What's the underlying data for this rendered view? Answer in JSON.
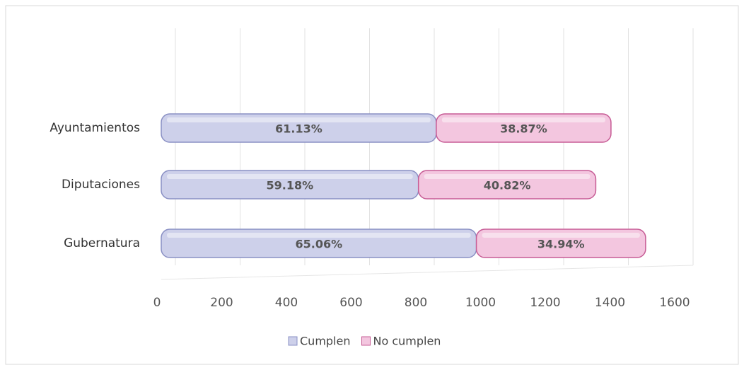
{
  "chart_data": {
    "type": "stacked-hbar",
    "categories": [
      "Ayuntamientos",
      "Diputaciones",
      "Gubernatura"
    ],
    "series": [
      {
        "name": "Cumplen",
        "color": "#cdd0ea",
        "edge": "#8a90c4",
        "values": [
          850,
          795,
          974
        ],
        "percent_labels": [
          "61.13%",
          "59.18%",
          "65.06%"
        ]
      },
      {
        "name": "No cumplen",
        "color": "#f3c6df",
        "edge": "#c75c95",
        "values": [
          540,
          548,
          523
        ],
        "percent_labels": [
          "38.87%",
          "40.82%",
          "34.94%"
        ]
      }
    ],
    "xlim": [
      0,
      1600
    ],
    "xticks": [
      0,
      200,
      400,
      600,
      800,
      1000,
      1200,
      1400,
      1600
    ],
    "grid": true,
    "legend": "bottom"
  }
}
